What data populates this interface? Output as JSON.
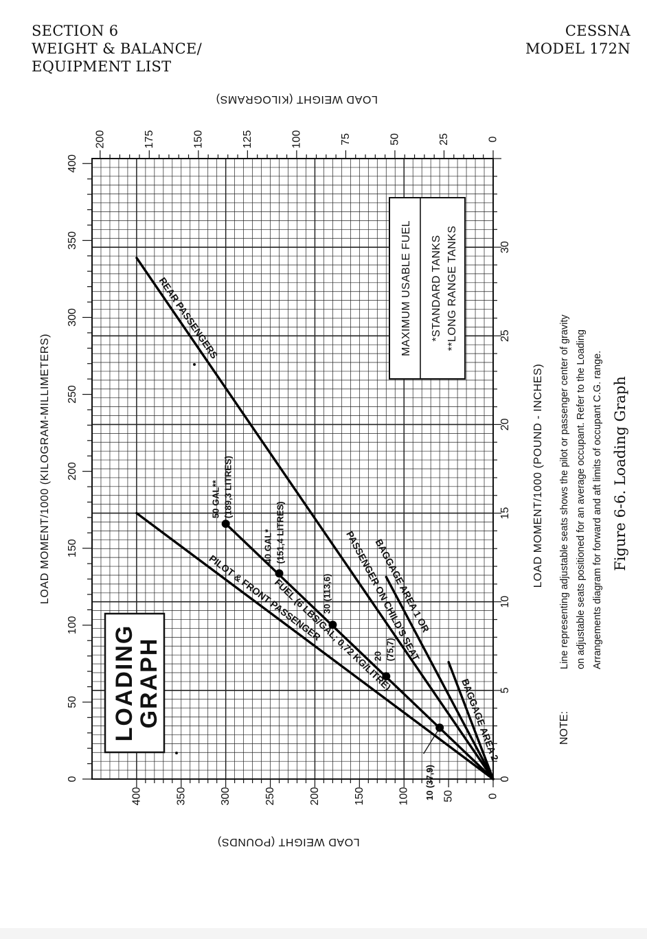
{
  "header": {
    "left_lines": [
      "SECTION 6",
      "WEIGHT & BALANCE/",
      "EQUIPMENT LIST"
    ],
    "right_lines": [
      "CESSNA",
      "MODEL 172N"
    ]
  },
  "chart_data": {
    "type": "line",
    "title_box": [
      "LOADING",
      "GRAPH"
    ],
    "xlabel_left": "LOAD MOMENT/1000 (KILOGRAM-MILLIMETERS)",
    "xlabel_right": "LOAD MOMENT/1000 (POUND - INCHES)",
    "ylabel_bottom": "LOAD WEIGHT (POUNDS)",
    "ylabel_top": "LOAD WEIGHT (KILOGRAMS)",
    "moment_lbin_range": [
      0,
      35
    ],
    "moment_kgmm_ticks": [
      "0",
      "50",
      "100",
      "150",
      "200",
      "250",
      "300",
      "350",
      "400"
    ],
    "moment_lbin_ticks": [
      "0",
      "5",
      "10",
      "15",
      "20",
      "25",
      "30"
    ],
    "weight_lb_range": [
      0,
      450
    ],
    "weight_lb_ticks": [
      "0",
      "50",
      "100",
      "150",
      "200",
      "250",
      "300",
      "350",
      "400"
    ],
    "weight_kg_ticks": [
      "0",
      "25",
      "50",
      "75",
      "100",
      "125",
      "150",
      "175",
      "200"
    ],
    "grid": true,
    "series": [
      {
        "name": "REAR PASSENGERS",
        "points": [
          [
            0,
            0
          ],
          [
            29.4,
            400
          ]
        ]
      },
      {
        "name": "PILOT & FRONT PASSENGER",
        "points": [
          [
            0,
            0
          ],
          [
            15.0,
            400
          ]
        ]
      },
      {
        "name": "FUEL (6 LBS/GAL; 0,72 KG/LITRE)",
        "points": [
          [
            0,
            0
          ],
          [
            14.4,
            300
          ]
        ]
      },
      {
        "name": "BAGGAGE AREA 1 OR PASSENGER ON CHILD'S SEAT",
        "points": [
          [
            0,
            0
          ],
          [
            11.4,
            120
          ]
        ]
      },
      {
        "name": "BAGGAGE AREA 2",
        "points": [
          [
            0,
            0
          ],
          [
            6.6,
            50
          ]
        ]
      }
    ],
    "fuel_points": [
      {
        "label": "10 (37,9)",
        "moment": 2.9,
        "weight": 60
      },
      {
        "label": "20 (75,7)",
        "moment": 5.8,
        "weight": 120
      },
      {
        "label": "30 (113,6)",
        "moment": 8.7,
        "weight": 180
      },
      {
        "label": "40 GAL* (151,4 LITRES)",
        "moment": 11.6,
        "weight": 240
      },
      {
        "label": "50 GAL** (189,3 LITRES)",
        "moment": 14.4,
        "weight": 300
      }
    ],
    "legend": {
      "title": "MAXIMUM USABLE FUEL",
      "lines": [
        "*STANDARD TANKS",
        "**LONG RANGE TANKS"
      ],
      "placement": "top-right"
    }
  },
  "note": {
    "label": "NOTE:",
    "lines": [
      "Line representing adjustable seats shows the pilot or passenger center of gravity",
      "on adjustable seats positioned for an average occupant.  Refer to the Loading",
      "Arrangements diagram for forward and aft limits of occupant C.G. range."
    ]
  },
  "figure_caption": "Figure 6-6.  Loading Graph"
}
